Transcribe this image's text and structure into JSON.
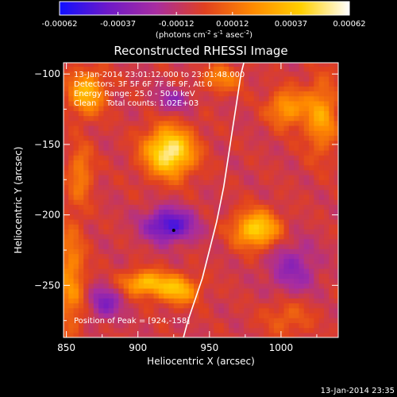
{
  "colorbar": {
    "ticks": [
      "-0.00062",
      "-0.00037",
      "-0.00012",
      "0.00012",
      "0.00037",
      "0.00062"
    ],
    "tick_values": [
      -0.00062,
      -0.00037,
      -0.00012,
      0.00012,
      0.00037,
      0.00062
    ],
    "range": [
      -0.00062,
      0.00062
    ],
    "units_main": "(photons cm",
    "units_sup1": "-2",
    "units_mid1": " s",
    "units_sup2": "-1",
    "units_mid2": " asec",
    "units_sup3": "-2",
    "units_end": ")",
    "colors": [
      "#1010ff",
      "#6e19c8",
      "#a82da0",
      "#e04020",
      "#ff8a00",
      "#ffd000",
      "#ffffff"
    ]
  },
  "chart_data": {
    "type": "heatmap",
    "title": "Reconstructed RHESSI Image",
    "xlabel": "Heliocentric X (arcsec)",
    "ylabel": "Heliocentric Y (arcsec)",
    "xlim": [
      848,
      1040
    ],
    "ylim": [
      -287,
      -92
    ],
    "xticks": [
      850,
      900,
      950,
      1000
    ],
    "yticks": [
      -100,
      -150,
      -200,
      -250
    ],
    "info_lines": [
      "13-Jan-2014 23:01:12.000 to 23:01:48.000",
      "Detectors: 3F 5F 6F 7F 8F 9F, Att 0",
      "Energy Range: 25.0 - 50.0 keV",
      "Clean    Total counts: 1.02E+03"
    ],
    "peak_label": "Position of Peak = [924,-158]",
    "peak": [
      924,
      -158
    ],
    "marker": [
      925,
      -211
    ],
    "limb": [
      [
        931,
        -290
      ],
      [
        935,
        -275
      ],
      [
        940,
        -260
      ],
      [
        945,
        -245
      ],
      [
        950,
        -225
      ],
      [
        955,
        -205
      ],
      [
        960,
        -180
      ],
      [
        963,
        -160
      ],
      [
        966,
        -140
      ],
      [
        969,
        -120
      ],
      [
        972,
        -100
      ],
      [
        974,
        -92
      ]
    ],
    "sources": [
      {
        "x": 922,
        "y": -155,
        "sx": 12,
        "sy": 12,
        "amp": 0.00062
      },
      {
        "x": 983,
        "y": -210,
        "sx": 11,
        "sy": 9,
        "amp": 0.0005
      },
      {
        "x": 905,
        "y": -248,
        "sx": 11,
        "sy": 6,
        "amp": 0.00042
      },
      {
        "x": 928,
        "y": -253,
        "sx": 10,
        "sy": 7,
        "amp": 0.0004
      },
      {
        "x": 864,
        "y": -113,
        "sx": 9,
        "sy": 11,
        "amp": 0.0004
      },
      {
        "x": 1004,
        "y": -124,
        "sx": 9,
        "sy": 9,
        "amp": 0.00033
      },
      {
        "x": 1028,
        "y": -130,
        "sx": 8,
        "sy": 18,
        "amp": 0.00033
      },
      {
        "x": 860,
        "y": -170,
        "sx": 6,
        "sy": 14,
        "amp": 0.00024
      },
      {
        "x": 853,
        "y": -245,
        "sx": 7,
        "sy": 28,
        "amp": 0.00028
      },
      {
        "x": 958,
        "y": -103,
        "sx": 10,
        "sy": 7,
        "amp": 0.00024
      },
      {
        "x": 1005,
        "y": -272,
        "sx": 12,
        "sy": 10,
        "amp": 0.00016
      },
      {
        "x": 922,
        "y": -207,
        "sx": 12,
        "sy": 8,
        "amp": -0.00045
      },
      {
        "x": 877,
        "y": -262,
        "sx": 8,
        "sy": 8,
        "amp": -0.00028
      },
      {
        "x": 1008,
        "y": -238,
        "sx": 12,
        "sy": 14,
        "amp": -0.00022
      },
      {
        "x": 925,
        "y": -118,
        "sx": 9,
        "sy": 6,
        "amp": -0.0002
      }
    ]
  },
  "footer": {
    "timestamp": "13-Jan-2014 23:35"
  }
}
